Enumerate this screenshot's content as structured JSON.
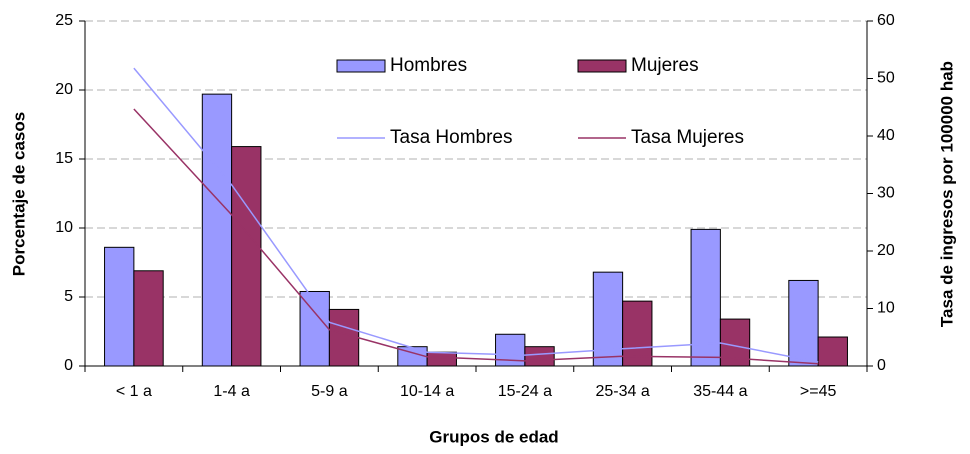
{
  "chart_data": {
    "type": "bar",
    "xlabel": "Grupos de edad",
    "ylabel": "Porcentaje de casos",
    "y2label": "Tasa de ingresos por 100000 hab",
    "categories": [
      "< 1 a",
      "1-4 a",
      "5-9 a",
      "10-14 a",
      "15-24 a",
      "25-34 a",
      "35-44 a",
      ">=45"
    ],
    "ylim": [
      0,
      25
    ],
    "yticks": [
      0,
      5,
      10,
      15,
      20,
      25
    ],
    "y2lim": [
      0,
      60
    ],
    "y2ticks": [
      0,
      10,
      20,
      30,
      40,
      50,
      60
    ],
    "grid": true,
    "series": [
      {
        "name": "Hombres",
        "type": "bar",
        "color": "#9999ff",
        "values": [
          8.6,
          19.7,
          5.4,
          1.4,
          2.3,
          6.8,
          9.9,
          6.2
        ]
      },
      {
        "name": "Mujeres",
        "type": "bar",
        "color": "#993366",
        "values": [
          6.9,
          15.9,
          4.1,
          1.0,
          1.4,
          4.7,
          3.4,
          2.1
        ]
      },
      {
        "name": "Tasa Hombres",
        "type": "line",
        "axis": "y2",
        "color": "#9999ff",
        "values": [
          51.8,
          31.5,
          7.6,
          2.4,
          1.9,
          3.0,
          4.0,
          0.7
        ]
      },
      {
        "name": "Tasa Mujeres",
        "type": "line",
        "axis": "y2",
        "color": "#993366",
        "values": [
          44.7,
          26.3,
          6.3,
          1.6,
          0.9,
          1.7,
          1.5,
          0.4
        ]
      }
    ]
  }
}
